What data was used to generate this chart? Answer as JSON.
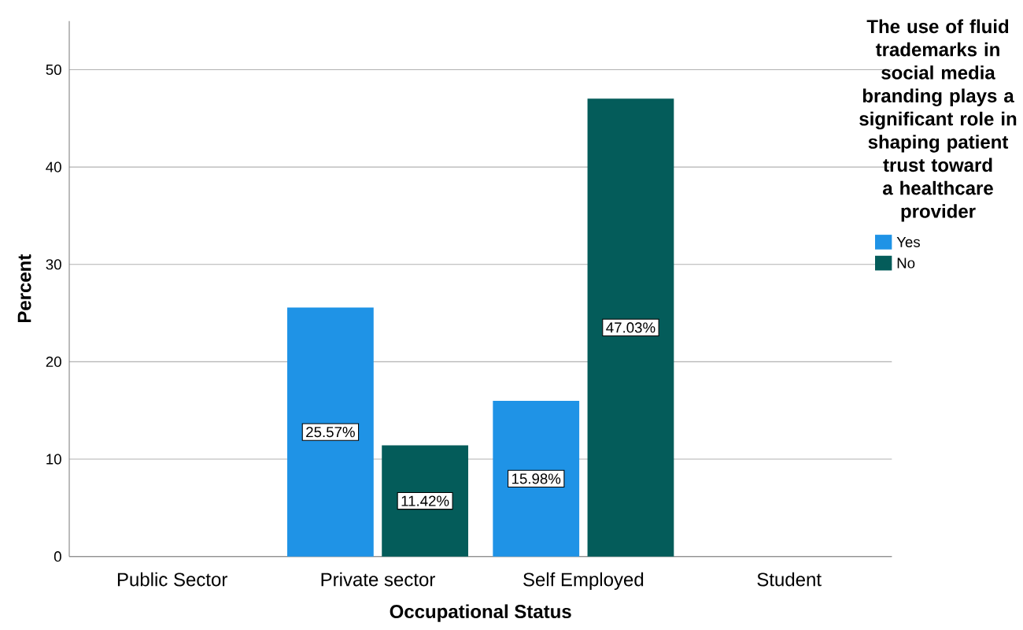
{
  "chart_data": {
    "type": "bar",
    "xlabel": "Occupational Status",
    "ylabel": "Percent",
    "legend_title": "The use of fluid trademarks in social media branding plays a significant role in shaping patient trust toward a healthcare provider",
    "categories": [
      "Public Sector",
      "Private sector",
      "Self Employed",
      "Student"
    ],
    "series": [
      {
        "name": "Yes",
        "color": "#1f93e6",
        "values": [
          null,
          25.57,
          15.98,
          null
        ],
        "value_labels": [
          null,
          "25.57%",
          "15.98%",
          null
        ]
      },
      {
        "name": "No",
        "color": "#045c5a",
        "values": [
          null,
          11.42,
          47.03,
          null
        ],
        "value_labels": [
          null,
          "11.42%",
          "47.03%",
          null
        ]
      }
    ],
    "ylim": [
      0,
      55
    ],
    "yticks": [
      0,
      10,
      20,
      30,
      40,
      50
    ],
    "grid": "y",
    "legend": "right"
  }
}
